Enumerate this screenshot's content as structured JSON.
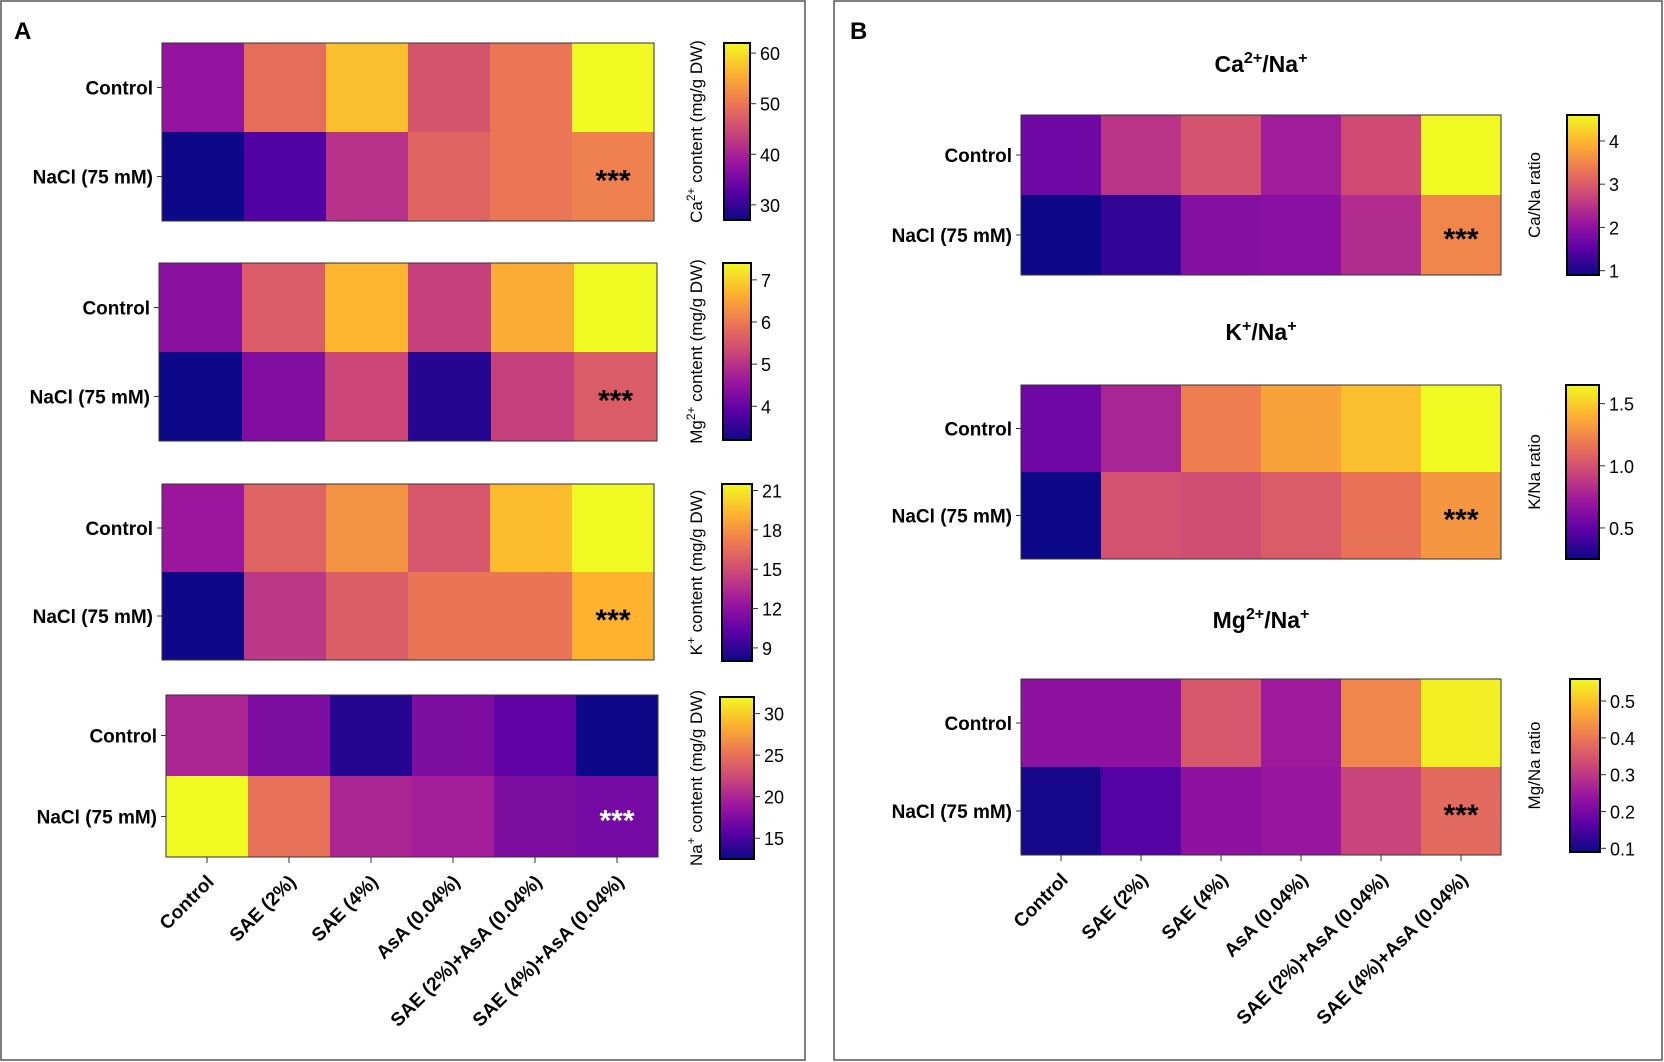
{
  "panels": {
    "a_letter": "A",
    "b_letter": "B"
  },
  "colors": {
    "colormap": "plasma",
    "stops": [
      "#0d0887",
      "#5c01a6",
      "#9c179e",
      "#cc4778",
      "#ed7953",
      "#fdb42f",
      "#f0f921"
    ],
    "significance_dark": "#000000",
    "significance_light": "#ffffff"
  },
  "chart_data": [
    {
      "type": "heatmap",
      "panel": "A",
      "title": "",
      "rows": [
        "Control",
        "NaCl (75 mM)"
      ],
      "columns": [
        "Control",
        "SAE (2%)",
        "SAE (4%)",
        "AsA (0.04%)",
        "SAE (2%)+AsA (0.04%)",
        "SAE (4%)+AsA (0.04%)"
      ],
      "values": [
        [
          38,
          49,
          57,
          46,
          50,
          62
        ],
        [
          27,
          32,
          42,
          48,
          50,
          51
        ]
      ],
      "colorbar_label": "Ca²⁺ content (mg/g DW)",
      "colorbar_range": [
        27,
        62
      ],
      "colorbar_ticks": [
        30,
        40,
        50,
        60
      ],
      "annotation": {
        "row": 1,
        "col": 5,
        "text": "***",
        "color": "dark"
      }
    },
    {
      "type": "heatmap",
      "panel": "A",
      "title": "",
      "rows": [
        "Control",
        "NaCl (75 mM)"
      ],
      "columns": [
        "Control",
        "SAE (2%)",
        "SAE (4%)",
        "AsA (0.04%)",
        "SAE (2%)+AsA (0.04%)",
        "SAE (4%)+AsA (0.04%)"
      ],
      "values": [
        [
          4.4,
          5.6,
          6.7,
          5.2,
          6.6,
          7.4
        ],
        [
          3.2,
          4.3,
          5.3,
          3.4,
          5.2,
          5.6
        ]
      ],
      "colorbar_label": "Mg²⁺ content (mg/g DW)",
      "colorbar_range": [
        3.2,
        7.4
      ],
      "colorbar_ticks": [
        4,
        5,
        6,
        7
      ],
      "annotation": {
        "row": 1,
        "col": 5,
        "text": "***",
        "color": "dark"
      }
    },
    {
      "type": "heatmap",
      "panel": "A",
      "title": "",
      "rows": [
        "Control",
        "NaCl (75 mM)"
      ],
      "columns": [
        "Control",
        "SAE (2%)",
        "SAE (4%)",
        "AsA (0.04%)",
        "SAE (2%)+AsA (0.04%)",
        "SAE (4%)+AsA (0.04%)"
      ],
      "values": [
        [
          12.5,
          16.0,
          18.0,
          15.5,
          19.5,
          21.5
        ],
        [
          8.0,
          14.0,
          15.8,
          16.8,
          16.8,
          19.2
        ]
      ],
      "colorbar_label": "K⁺ content (mg/g DW)",
      "colorbar_range": [
        8,
        21.5
      ],
      "colorbar_ticks": [
        9,
        12,
        15,
        18,
        21
      ],
      "annotation": {
        "row": 1,
        "col": 5,
        "text": "***",
        "color": "dark"
      }
    },
    {
      "type": "heatmap",
      "panel": "A",
      "title": "",
      "rows": [
        "Control",
        "NaCl (75 mM)"
      ],
      "columns": [
        "Control",
        "SAE (2%)",
        "SAE (4%)",
        "AsA (0.04%)",
        "SAE (2%)+AsA (0.04%)",
        "SAE (4%)+AsA (0.04%)"
      ],
      "values": [
        [
          20.0,
          17.5,
          13.5,
          17.5,
          16.0,
          12.5
        ],
        [
          32.0,
          25.0,
          20.0,
          19.5,
          17.5,
          17.0
        ]
      ],
      "colorbar_label": "Na⁺ content (mg/g DW)",
      "colorbar_range": [
        12.5,
        32
      ],
      "colorbar_ticks": [
        15,
        20,
        25,
        30
      ],
      "annotation": {
        "row": 1,
        "col": 5,
        "text": "***",
        "color": "light"
      }
    },
    {
      "type": "heatmap",
      "panel": "B",
      "title": "Ca²⁺/Na⁺",
      "rows": [
        "Control",
        "NaCl (75 mM)"
      ],
      "columns": [
        "Control",
        "SAE (2%)",
        "SAE (4%)",
        "AsA (0.04%)",
        "SAE (2%)+AsA (0.04%)",
        "SAE (4%)+AsA (0.04%)"
      ],
      "values": [
        [
          1.7,
          2.5,
          2.9,
          2.2,
          2.8,
          4.6
        ],
        [
          0.9,
          1.2,
          1.9,
          1.95,
          2.4,
          3.5
        ]
      ],
      "colorbar_label": "Ca/Na ratio",
      "colorbar_range": [
        0.9,
        4.6
      ],
      "colorbar_ticks": [
        1,
        2,
        3,
        4
      ],
      "annotation": {
        "row": 1,
        "col": 5,
        "text": "***",
        "color": "dark"
      }
    },
    {
      "type": "heatmap",
      "panel": "B",
      "title": "K⁺/Na⁺",
      "rows": [
        "Control",
        "NaCl (75 mM)"
      ],
      "columns": [
        "Control",
        "SAE (2%)",
        "SAE (4%)",
        "AsA (0.04%)",
        "SAE (2%)+AsA (0.04%)",
        "SAE (4%)+AsA (0.04%)"
      ],
      "values": [
        [
          0.55,
          0.78,
          1.2,
          1.35,
          1.45,
          1.65
        ],
        [
          0.25,
          1.0,
          0.98,
          1.05,
          1.15,
          1.3
        ]
      ],
      "colorbar_label": "K/Na ratio",
      "colorbar_range": [
        0.25,
        1.65
      ],
      "colorbar_ticks": [
        0.5,
        1.0,
        1.5
      ],
      "colorbar_tick_labels": [
        "0.5",
        "1.0",
        "1.5"
      ],
      "annotation": {
        "row": 1,
        "col": 5,
        "text": "***",
        "color": "dark"
      }
    },
    {
      "type": "heatmap",
      "panel": "B",
      "title": "Mg²⁺/Na⁺",
      "rows": [
        "Control",
        "NaCl (75 mM)"
      ],
      "columns": [
        "Control",
        "SAE (2%)",
        "SAE (4%)",
        "AsA (0.04%)",
        "SAE (2%)+AsA (0.04%)",
        "SAE (4%)+AsA (0.04%)"
      ],
      "values": [
        [
          0.23,
          0.23,
          0.35,
          0.25,
          0.42,
          0.55
        ],
        [
          0.1,
          0.16,
          0.23,
          0.24,
          0.32,
          0.38
        ]
      ],
      "colorbar_label": "Mg/Na ratio",
      "colorbar_range": [
        0.09,
        0.56
      ],
      "colorbar_ticks": [
        0.1,
        0.2,
        0.3,
        0.4,
        0.5
      ],
      "colorbar_tick_labels": [
        "0.1",
        "0.2",
        "0.3",
        "0.4",
        "0.5"
      ],
      "annotation": {
        "row": 1,
        "col": 5,
        "text": "***",
        "color": "dark"
      }
    }
  ]
}
